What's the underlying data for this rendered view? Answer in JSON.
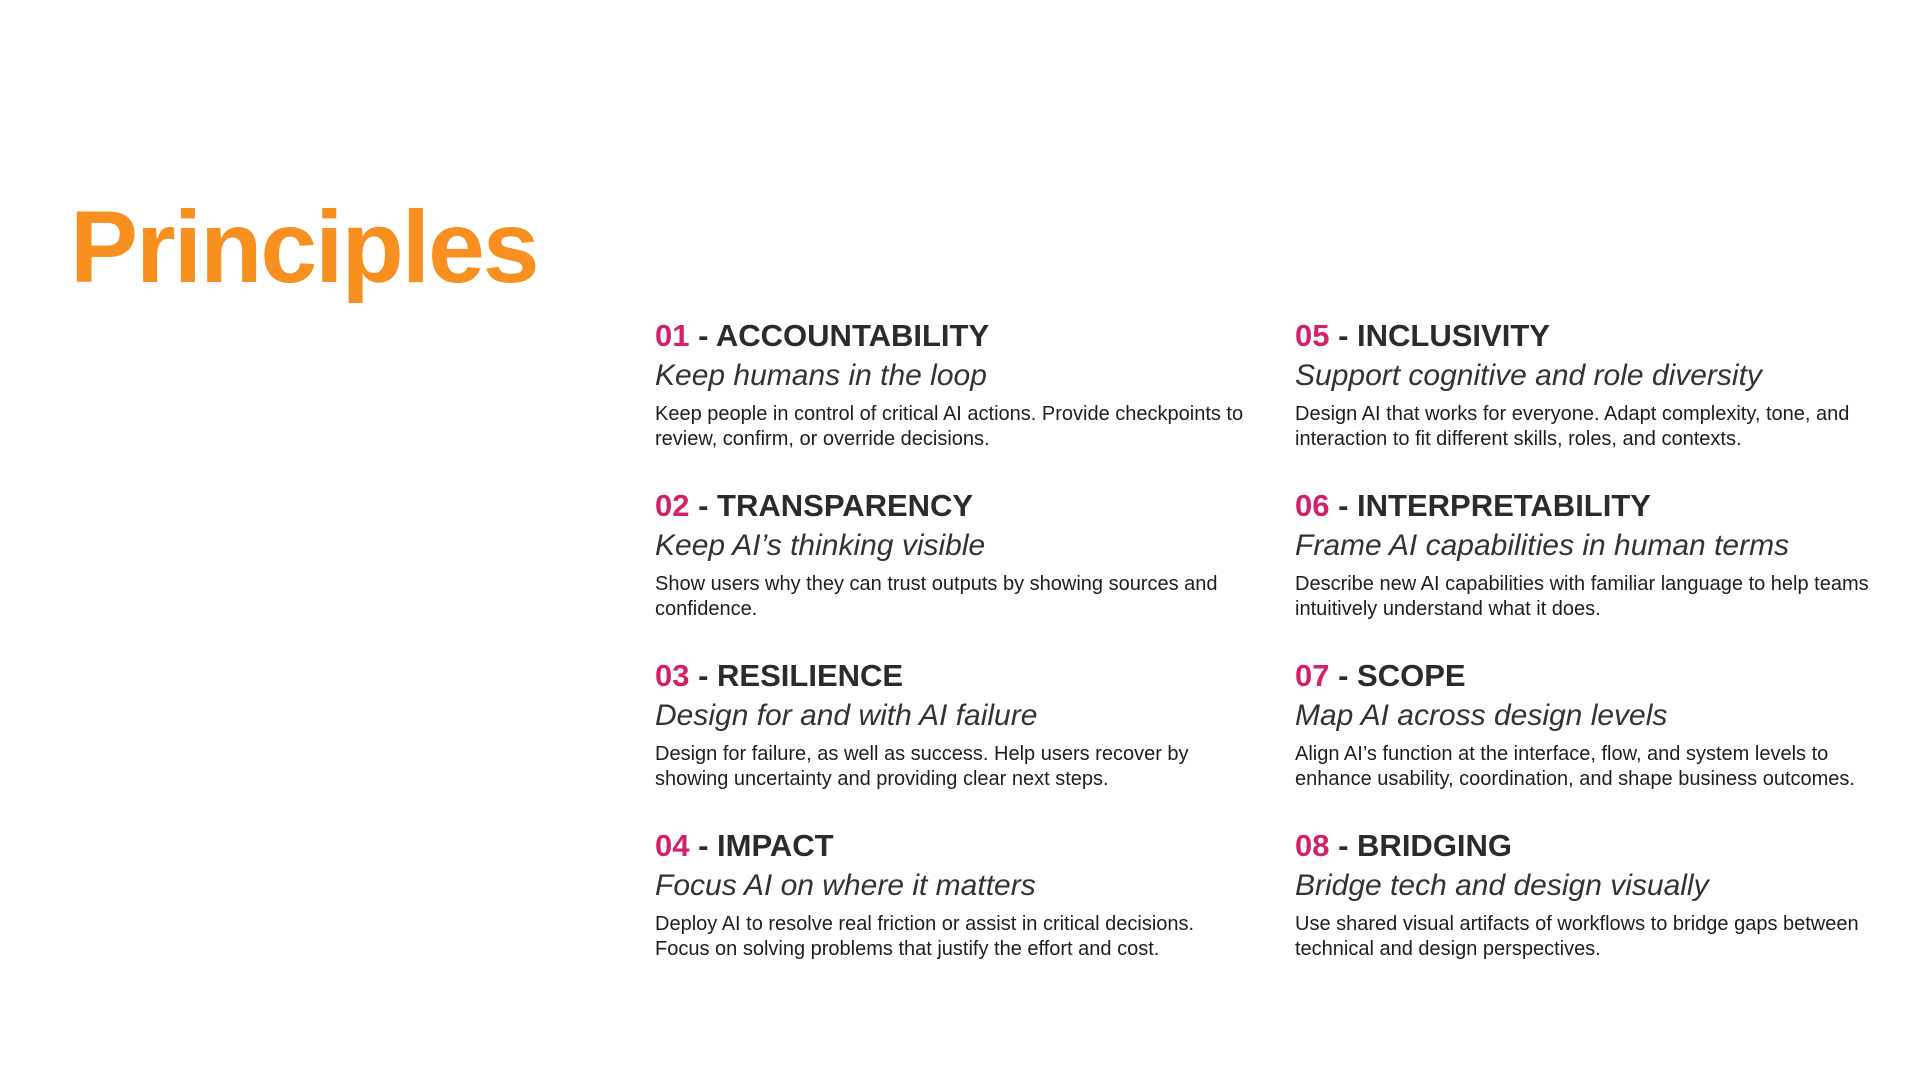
{
  "title": "Principles",
  "colors": {
    "title": "#f7901e",
    "number": "#d5216c",
    "heading": "#2b2b2b",
    "background": "#ffffff"
  },
  "principles": [
    {
      "number": "01",
      "separator": " - ",
      "name": "ACCOUNTABILITY",
      "tagline": "Keep humans in the loop",
      "description": "Keep people in control of critical AI actions. Provide checkpoints to review, confirm, or override decisions."
    },
    {
      "number": "02",
      "separator": " - ",
      "name": "TRANSPARENCY",
      "tagline": "Keep AI’s thinking visible",
      "description": "Show users why they can trust outputs by showing sources and confidence."
    },
    {
      "number": "03",
      "separator": " - ",
      "name": "RESILIENCE",
      "tagline": "Design for and with AI failure",
      "description": "Design for failure, as well as success. Help users recover by showing uncertainty and providing clear next steps."
    },
    {
      "number": "04",
      "separator": " - ",
      "name": "IMPACT",
      "tagline": "Focus AI on where it matters",
      "description": "Deploy AI to resolve real friction or assist in critical decisions. Focus on solving problems that justify the effort and cost."
    },
    {
      "number": "05",
      "separator": " - ",
      "name": "INCLUSIVITY",
      "tagline": "Support cognitive and role diversity",
      "description": "Design AI that works for everyone. Adapt complexity, tone, and interaction to fit different skills, roles, and contexts."
    },
    {
      "number": "06",
      "separator": " - ",
      "name": "INTERPRETABILITY",
      "tagline": "Frame AI capabilities in human terms",
      "description": "Describe new AI capabilities with familiar language to help teams intuitively understand what it does."
    },
    {
      "number": "07",
      "separator": " - ",
      "name": "SCOPE",
      "tagline": "Map AI across design levels",
      "description": "Align AI’s function at the interface, flow, and system levels to enhance usability, coordination, and shape business outcomes."
    },
    {
      "number": "08",
      "separator": " - ",
      "name": "BRIDGING",
      "tagline": "Bridge tech and design visually",
      "description": "Use shared visual artifacts of workflows to bridge gaps between technical and design perspectives."
    }
  ]
}
